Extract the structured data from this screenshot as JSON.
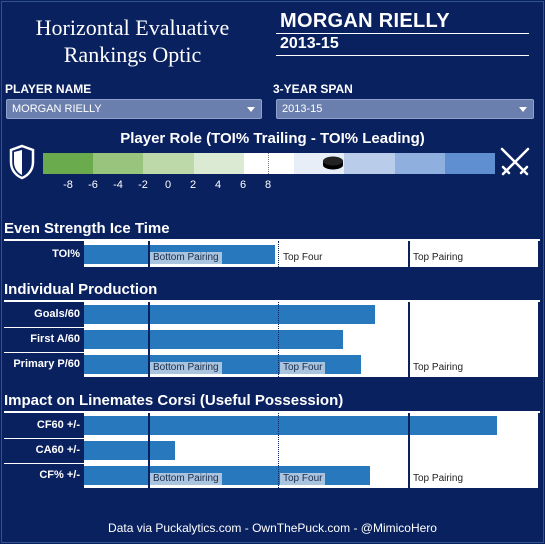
{
  "header": {
    "title_line1": "Horizontal Evaluative",
    "title_line2": "Rankings Optic",
    "player": "MORGAN RIELLY",
    "season": "2013-15"
  },
  "controls": {
    "player_label": "PLAYER NAME",
    "player_value": "MORGAN RIELLY",
    "span_label": "3-YEAR SPAN",
    "span_value": "2013-15"
  },
  "role": {
    "title": "Player Role (TOI% Trailing - TOI% Leading)",
    "ticks": [
      "-8",
      "-6",
      "-4",
      "-2",
      "0",
      "2",
      "4",
      "6",
      "8"
    ],
    "scale_colors": [
      "#6aab4e",
      "#98c47d",
      "#bdd9a9",
      "#dbead3",
      "#ffffff",
      "#e8eef8",
      "#b9cdeb",
      "#8fb0df",
      "#5f8fd0"
    ],
    "marker_value": 2.7,
    "marker_icon": "puck-icon",
    "left_icon": "shield-icon",
    "right_icon": "crossed-swords-icon"
  },
  "sections": [
    {
      "title": "Even Strength Ice Time",
      "rows": [
        {
          "label": "TOI%",
          "value_fraction": 0.42
        }
      ],
      "tiers": [
        "Bottom Pairing",
        "Top Four",
        "Top Pairing"
      ]
    },
    {
      "title": "Individual Production",
      "rows": [
        {
          "label": "Goals/60",
          "value_fraction": 0.64
        },
        {
          "label": "First A/60",
          "value_fraction": 0.57
        },
        {
          "label": "Primary P/60",
          "value_fraction": 0.61
        }
      ],
      "tiers": [
        "Bottom Pairing",
        "Top Four",
        "Top Pairing"
      ]
    },
    {
      "title": "Impact on Linemates Corsi (Useful Possession)",
      "rows": [
        {
          "label": "CF60 +/-",
          "value_fraction": 0.91
        },
        {
          "label": "CA60 +/-",
          "value_fraction": 0.2
        },
        {
          "label": "CF% +/-",
          "value_fraction": 0.63
        }
      ],
      "tiers": [
        "Bottom Pairing",
        "Top Four",
        "Top Pairing"
      ]
    }
  ],
  "footer": "Data via Puckalytics.com - OwnThePuck.com - @MimicoHero"
}
